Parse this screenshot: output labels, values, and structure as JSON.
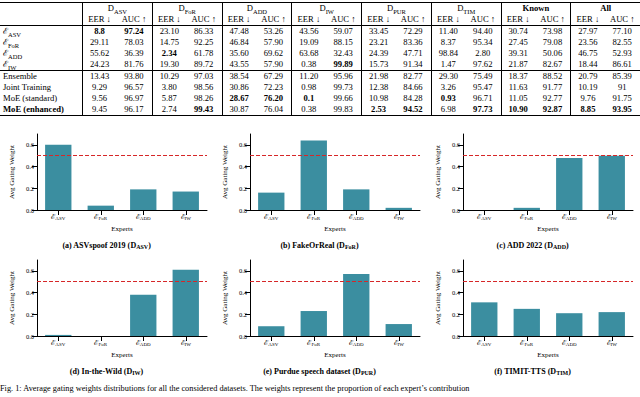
{
  "table": {
    "groups": [
      {
        "main": "D",
        "sub": "ASV"
      },
      {
        "main": "D",
        "sub": "FoR"
      },
      {
        "main": "D",
        "sub": "ADD"
      },
      {
        "main": "D",
        "sub": "IW"
      },
      {
        "main": "D",
        "sub": "PUR"
      },
      {
        "main": "D",
        "sub": "TIM"
      },
      {
        "main": "Known",
        "bold": true
      },
      {
        "main": "All",
        "bold": true
      }
    ],
    "metrics": [
      "EER ↓",
      "AUC ↑"
    ],
    "sections": [
      [
        {
          "label": {
            "main": "ℰ",
            "sub": "ASV"
          },
          "cells": [
            "8.8",
            "97.24",
            "23.10",
            "86.33",
            "47.48",
            "53.26",
            "43.56",
            "59.07",
            "33.45",
            "72.29",
            "11.40",
            "94.40",
            "30.74",
            "73.98",
            "27.97",
            "77.10"
          ],
          "bold": [
            0,
            1
          ]
        },
        {
          "label": {
            "main": "ℰ",
            "sub": "FoR"
          },
          "cells": [
            "29.11",
            "78.03",
            "14.75",
            "92.25",
            "46.84",
            "57.90",
            "19.09",
            "88.15",
            "23.21",
            "83.36",
            "8.37",
            "95.34",
            "27.45",
            "79.08",
            "23.56",
            "82.55"
          ],
          "bold": []
        },
        {
          "label": {
            "main": "ℰ",
            "sub": "ADD"
          },
          "cells": [
            "55.62",
            "36.39",
            "2.34",
            "61.78",
            "35.60",
            "69.62",
            "63.68",
            "32.43",
            "24.39",
            "47.71",
            "98.84",
            "2.80",
            "39.31",
            "50.06",
            "46.75",
            "52.93"
          ],
          "bold": [
            2
          ]
        },
        {
          "label": {
            "main": "ℰ",
            "sub": "IW"
          },
          "cells": [
            "24.23",
            "81.76",
            "19.30",
            "89.72",
            "43.55",
            "57.90",
            "0.38",
            "99.89",
            "15.73",
            "91.34",
            "1.47",
            "97.62",
            "21.87",
            "82.67",
            "18.44",
            "86.61"
          ],
          "bold": [
            7
          ]
        }
      ],
      [
        {
          "label": {
            "main": "Ensemble"
          },
          "cells": [
            "13.43",
            "93.80",
            "10.29",
            "97.03",
            "38.54",
            "67.29",
            "11.20",
            "95.96",
            "21.98",
            "82.77",
            "29.30",
            "75.49",
            "18.37",
            "88.52",
            "20.79",
            "85.39"
          ],
          "bold": []
        },
        {
          "label": {
            "main": "Joint Training"
          },
          "cells": [
            "9.29",
            "96.57",
            "3.80",
            "98.56",
            "30.86",
            "72.23",
            "0.98",
            "99.73",
            "12.38",
            "84.66",
            "3.26",
            "95.47",
            "11.63",
            "91.77",
            "10.19",
            "91"
          ],
          "bold": []
        },
        {
          "label": {
            "main": "MoE (standard)"
          },
          "cells": [
            "9.56",
            "96.97",
            "5.87",
            "98.26",
            "28.67",
            "76.20",
            "0.1",
            "99.66",
            "10.98",
            "84.28",
            "0.93",
            "96.71",
            "11.05",
            "92.77",
            "9.76",
            "91.75"
          ],
          "bold": [
            4,
            5,
            6,
            10
          ]
        },
        {
          "label": {
            "main": "MoE (enhanced)",
            "bold": true
          },
          "cells": [
            "9.45",
            "96.17",
            "2.74",
            "99.43",
            "30.87",
            "76.04",
            "0.38",
            "99.83",
            "2.53",
            "94.52",
            "6.98",
            "97.73",
            "10.90",
            "92.87",
            "8.85",
            "93.95"
          ],
          "bold": [
            3,
            8,
            9,
            11,
            12,
            13,
            14,
            15
          ]
        }
      ]
    ]
  },
  "chart_data": [
    {
      "type": "bar",
      "title_prefix": "(a) ASVspoof 2019 (",
      "dataset": {
        "main": "D",
        "sub": "ASV"
      },
      "title_suffix": ")",
      "x_label": "Experts",
      "y_label": "Avg Gating Weight",
      "categories": [
        "ℰASV",
        "ℰFoR",
        "ℰADD",
        "ℰIW"
      ],
      "values": [
        0.6,
        0.04,
        0.19,
        0.17
      ],
      "color": "#3b8ea0",
      "threshold": 0.5,
      "ylim": [
        0,
        0.7
      ],
      "yticks": [
        {
          "value": 0,
          "label": "0.0"
        },
        {
          "value": 0.2,
          "label": "0.2"
        },
        {
          "value": 0.4,
          "label": "0.4"
        },
        {
          "value": 0.6,
          "label": "0.6"
        }
      ],
      "grid": false
    },
    {
      "type": "bar",
      "title_prefix": "(b) FakeOrReal (",
      "dataset": {
        "main": "D",
        "sub": "FoR"
      },
      "title_suffix": ")",
      "x_label": "Experts",
      "y_label": "Avg Gating Weight",
      "categories": [
        "ℰASV",
        "ℰFoR",
        "ℰADD",
        "ℰIW"
      ],
      "values": [
        0.16,
        0.64,
        0.19,
        0.02
      ],
      "color": "#3b8ea0",
      "threshold": 0.5,
      "ylim": [
        0,
        0.7
      ],
      "yticks": [
        {
          "value": 0,
          "label": "0.0"
        },
        {
          "value": 0.2,
          "label": "0.2"
        },
        {
          "value": 0.4,
          "label": "0.4"
        },
        {
          "value": 0.6,
          "label": "0.6"
        }
      ],
      "grid": false
    },
    {
      "type": "bar",
      "title_prefix": "(c) ADD 2022 (",
      "dataset": {
        "main": "D",
        "sub": "ADD"
      },
      "title_suffix": ")",
      "x_label": "Experts",
      "y_label": "Avg Gating Weight",
      "categories": [
        "ℰASV",
        "ℰFoR",
        "ℰADD",
        "ℰIW"
      ],
      "values": [
        0.0,
        0.02,
        0.48,
        0.5
      ],
      "color": "#3b8ea0",
      "threshold": 0.5,
      "ylim": [
        0,
        0.7
      ],
      "yticks": [
        {
          "value": 0,
          "label": "0.0"
        },
        {
          "value": 0.2,
          "label": "0.2"
        },
        {
          "value": 0.4,
          "label": "0.4"
        },
        {
          "value": 0.6,
          "label": "0.6"
        }
      ],
      "grid": false
    },
    {
      "type": "bar",
      "title_prefix": "(d) In-the-Wild (",
      "dataset": {
        "main": "D",
        "sub": "IW"
      },
      "title_suffix": ")",
      "x_label": "Experts",
      "y_label": "Avg Gating Weight",
      "categories": [
        "ℰASV",
        "ℰFoR",
        "ℰADD",
        "ℰIW"
      ],
      "values": [
        0.01,
        0.0,
        0.38,
        0.61
      ],
      "color": "#3b8ea0",
      "threshold": 0.5,
      "ylim": [
        0,
        0.7
      ],
      "yticks": [
        {
          "value": 0,
          "label": "0.0"
        },
        {
          "value": 0.2,
          "label": "0.2"
        },
        {
          "value": 0.4,
          "label": "0.4"
        },
        {
          "value": 0.6,
          "label": "0.6"
        }
      ],
      "grid": false
    },
    {
      "type": "bar",
      "title_prefix": "(e) Purdue speech dataset (",
      "dataset": {
        "main": "D",
        "sub": "PUR"
      },
      "title_suffix": ")",
      "x_label": "Experts",
      "y_label": "Avg Gating Weight",
      "categories": [
        "ℰASV",
        "ℰFoR",
        "ℰADD",
        "ℰIW"
      ],
      "values": [
        0.09,
        0.23,
        0.57,
        0.11
      ],
      "color": "#3b8ea0",
      "threshold": 0.5,
      "ylim": [
        0,
        0.7
      ],
      "yticks": [
        {
          "value": 0,
          "label": "0.0"
        },
        {
          "value": 0.2,
          "label": "0.2"
        },
        {
          "value": 0.4,
          "label": "0.4"
        },
        {
          "value": 0.6,
          "label": "0.6"
        }
      ],
      "grid": false
    },
    {
      "type": "bar",
      "title_prefix": "(f) TIMIT-TTS (",
      "dataset": {
        "main": "D",
        "sub": "TIM"
      },
      "title_suffix": ")",
      "x_label": "Experts",
      "y_label": "Avg Gating Weight",
      "categories": [
        "ℰASV",
        "ℰFoR",
        "ℰADD",
        "ℰIW"
      ],
      "values": [
        0.31,
        0.25,
        0.21,
        0.22
      ],
      "color": "#3b8ea0",
      "threshold": 0.5,
      "ylim": [
        0,
        0.7
      ],
      "yticks": [
        {
          "value": 0,
          "label": "0.0"
        },
        {
          "value": 0.2,
          "label": "0.2"
        },
        {
          "value": 0.4,
          "label": "0.4"
        },
        {
          "value": 0.6,
          "label": "0.6"
        }
      ],
      "grid": false
    }
  ],
  "caption": {
    "label": "Fig. 1:",
    "text": "Average gating weights distributions for all the considered datasets. The weights represent the proportion of each expert’s contribution"
  }
}
